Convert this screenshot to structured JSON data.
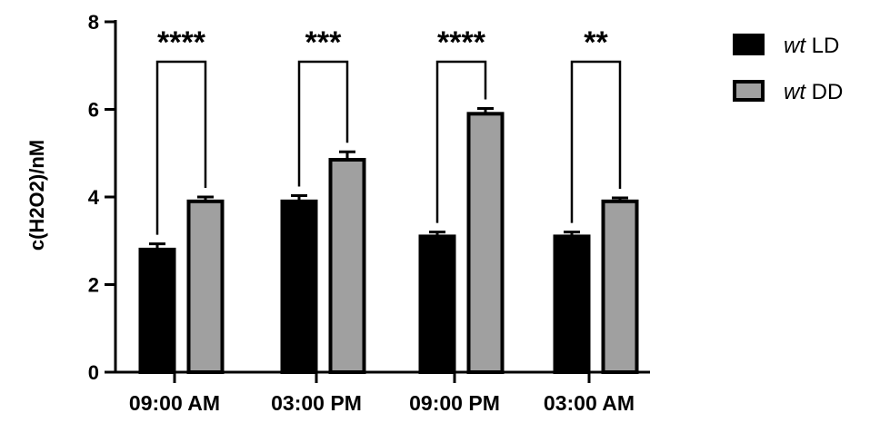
{
  "chart_data": {
    "type": "bar",
    "categories": [
      "09:00 AM",
      "03:00 PM",
      "09:00 PM",
      "03:00 AM"
    ],
    "series": [
      {
        "name": "wt LD",
        "name_italic": "wt",
        "name_rest": " LD",
        "color": "#000000",
        "values": [
          2.8,
          3.9,
          3.1,
          3.1
        ],
        "errors": [
          0.13,
          0.13,
          0.1,
          0.1
        ]
      },
      {
        "name": "wt DD",
        "name_italic": "wt",
        "name_rest": " DD",
        "color": "#a0a0a0",
        "values": [
          3.9,
          4.85,
          5.9,
          3.9
        ],
        "errors": [
          0.1,
          0.18,
          0.12,
          0.08
        ]
      }
    ],
    "significance": [
      "****",
      "***",
      "****",
      "**"
    ],
    "ylabel": "c(H2O2)/nM",
    "xlabel": "",
    "ylim": [
      0,
      8
    ],
    "yticks": [
      0,
      2,
      4,
      6,
      8
    ],
    "legend_position": "top-right",
    "grid": false
  }
}
